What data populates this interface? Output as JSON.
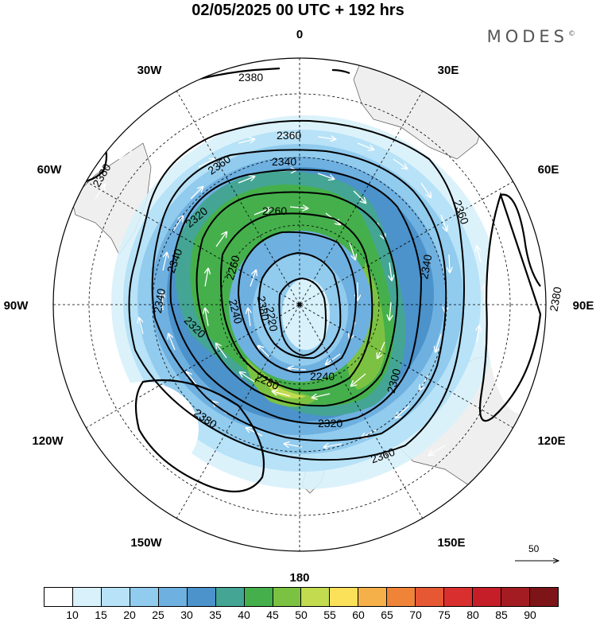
{
  "title": "02/05/2025  00 UTC  + 192 hrs",
  "brand": "MODES",
  "brand_mark": "©",
  "longitude_labels": {
    "lon_0": "0",
    "lon_30e": "30E",
    "lon_60e": "60E",
    "lon_90e": "90E",
    "lon_120e": "120E",
    "lon_150e": "150E",
    "lon_180": "180",
    "lon_150w": "150W",
    "lon_120w": "120W",
    "lon_90w": "90W",
    "lon_60w": "60W",
    "lon_30w": "30W"
  },
  "contour_labels": {
    "c2380_nw": "2380",
    "c2380_n": "2380",
    "c2380_e": "2380",
    "c2380_sw": "2380",
    "c2380_se": "2380",
    "c2360_n": "2360",
    "c2360_nw": "2360",
    "c2360_ne": "2360",
    "c2360_s": "2360",
    "c2340_n": "2340",
    "c2340_w": "2340",
    "c2340_w2": "2340",
    "c2340_e": "2340",
    "c2320_nw": "2320",
    "c2320_sw": "2320",
    "c2320_s": "2320",
    "c2300_se": "2300",
    "c2280_s": "2280",
    "c2260_n": "2260",
    "c2260_w": "2260",
    "c2240_s": "2240",
    "c2240_w": "2240",
    "c2220_c": "2220"
  },
  "colorbar": {
    "ticks": [
      "10",
      "15",
      "20",
      "25",
      "30",
      "35",
      "40",
      "45",
      "50",
      "55",
      "60",
      "65",
      "70",
      "75",
      "80",
      "85",
      "90"
    ],
    "colors": [
      "#ffffff",
      "#d8f1fb",
      "#b7e2f7",
      "#91cbee",
      "#6eb0e0",
      "#4c92cb",
      "#44a594",
      "#45b04b",
      "#7cc242",
      "#c2db4f",
      "#fbe05a",
      "#f5b04a",
      "#ef8439",
      "#e65733",
      "#da2f2f",
      "#c61e28",
      "#a31c22",
      "#7d1418"
    ]
  },
  "reference_vector": {
    "label": "50"
  },
  "colors": {
    "land": "#efefef",
    "coast": "#555555"
  }
}
